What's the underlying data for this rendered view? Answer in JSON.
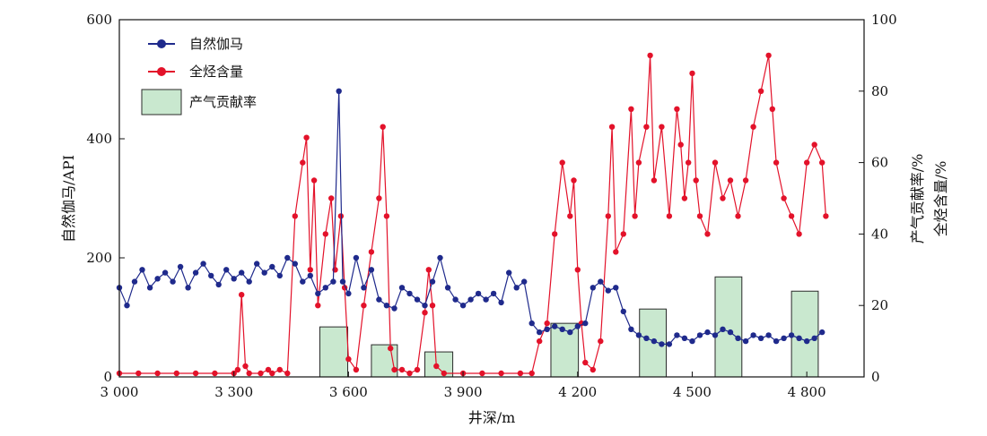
{
  "chart_data": {
    "type": "line",
    "xlabel": "井深/m",
    "ylabel_left": "自然伽马/API",
    "ylabel_right_1": "产气贡献率/%",
    "ylabel_right_2": "全烃含量/%",
    "xlim": [
      3000,
      4950
    ],
    "ylim_left": [
      0,
      600
    ],
    "ylim_right": [
      0,
      100
    ],
    "x_ticks": [
      3000,
      3300,
      3600,
      3900,
      4200,
      4500,
      4800
    ],
    "x_tick_labels": [
      "3 000",
      "3 300",
      "3 600",
      "3 900",
      "4 200",
      "4 500",
      "4 800"
    ],
    "y_left_ticks": [
      0,
      200,
      400,
      600
    ],
    "y_left_tick_labels": [
      "0",
      "200",
      "400",
      "600"
    ],
    "y_right_ticks": [
      0,
      20,
      40,
      60,
      80,
      100
    ],
    "y_right_tick_labels": [
      "0",
      "20",
      "40",
      "60",
      "80",
      "100"
    ],
    "legend_position": "top-left",
    "legend": [
      {
        "name": "自然伽马",
        "color": "#1f2a8c",
        "kind": "line-marker"
      },
      {
        "name": "全烃含量",
        "color": "#e3122a",
        "kind": "line-marker"
      },
      {
        "name": "产气贡献率",
        "color": "#c9e8cf",
        "kind": "bar"
      }
    ],
    "series": [
      {
        "name": "自然伽马",
        "axis": "left",
        "color": "#1f2a8c",
        "points": [
          [
            3000,
            150
          ],
          [
            3020,
            120
          ],
          [
            3040,
            160
          ],
          [
            3060,
            180
          ],
          [
            3080,
            150
          ],
          [
            3100,
            165
          ],
          [
            3120,
            175
          ],
          [
            3140,
            160
          ],
          [
            3160,
            185
          ],
          [
            3180,
            150
          ],
          [
            3200,
            175
          ],
          [
            3220,
            190
          ],
          [
            3240,
            170
          ],
          [
            3260,
            155
          ],
          [
            3280,
            180
          ],
          [
            3300,
            165
          ],
          [
            3320,
            175
          ],
          [
            3340,
            160
          ],
          [
            3360,
            190
          ],
          [
            3380,
            175
          ],
          [
            3400,
            185
          ],
          [
            3420,
            170
          ],
          [
            3440,
            200
          ],
          [
            3460,
            190
          ],
          [
            3480,
            160
          ],
          [
            3500,
            170
          ],
          [
            3520,
            140
          ],
          [
            3540,
            150
          ],
          [
            3560,
            160
          ],
          [
            3575,
            480
          ],
          [
            3585,
            160
          ],
          [
            3600,
            140
          ],
          [
            3620,
            200
          ],
          [
            3640,
            150
          ],
          [
            3660,
            180
          ],
          [
            3680,
            130
          ],
          [
            3700,
            120
          ],
          [
            3720,
            115
          ],
          [
            3740,
            150
          ],
          [
            3760,
            140
          ],
          [
            3780,
            130
          ],
          [
            3800,
            120
          ],
          [
            3820,
            160
          ],
          [
            3840,
            200
          ],
          [
            3860,
            150
          ],
          [
            3880,
            130
          ],
          [
            3900,
            120
          ],
          [
            3920,
            130
          ],
          [
            3940,
            140
          ],
          [
            3960,
            130
          ],
          [
            3980,
            140
          ],
          [
            4000,
            125
          ],
          [
            4020,
            175
          ],
          [
            4040,
            150
          ],
          [
            4060,
            160
          ],
          [
            4080,
            90
          ],
          [
            4100,
            75
          ],
          [
            4120,
            80
          ],
          [
            4140,
            85
          ],
          [
            4160,
            80
          ],
          [
            4180,
            75
          ],
          [
            4200,
            85
          ],
          [
            4220,
            90
          ],
          [
            4240,
            150
          ],
          [
            4260,
            160
          ],
          [
            4280,
            145
          ],
          [
            4300,
            150
          ],
          [
            4320,
            110
          ],
          [
            4340,
            80
          ],
          [
            4360,
            70
          ],
          [
            4380,
            65
          ],
          [
            4400,
            60
          ],
          [
            4420,
            55
          ],
          [
            4440,
            55
          ],
          [
            4460,
            70
          ],
          [
            4480,
            65
          ],
          [
            4500,
            60
          ],
          [
            4520,
            70
          ],
          [
            4540,
            75
          ],
          [
            4560,
            70
          ],
          [
            4580,
            80
          ],
          [
            4600,
            75
          ],
          [
            4620,
            65
          ],
          [
            4640,
            60
          ],
          [
            4660,
            70
          ],
          [
            4680,
            65
          ],
          [
            4700,
            70
          ],
          [
            4720,
            60
          ],
          [
            4740,
            65
          ],
          [
            4760,
            70
          ],
          [
            4780,
            65
          ],
          [
            4800,
            60
          ],
          [
            4820,
            65
          ],
          [
            4840,
            75
          ]
        ]
      },
      {
        "name": "全烃含量",
        "axis": "right",
        "color": "#e3122a",
        "points": [
          [
            3000,
            1
          ],
          [
            3050,
            1
          ],
          [
            3100,
            1
          ],
          [
            3150,
            1
          ],
          [
            3200,
            1
          ],
          [
            3250,
            1
          ],
          [
            3300,
            1
          ],
          [
            3310,
            2
          ],
          [
            3320,
            23
          ],
          [
            3330,
            3
          ],
          [
            3340,
            1
          ],
          [
            3370,
            1
          ],
          [
            3390,
            2
          ],
          [
            3400,
            1
          ],
          [
            3420,
            2
          ],
          [
            3440,
            1
          ],
          [
            3460,
            45
          ],
          [
            3480,
            60
          ],
          [
            3490,
            67
          ],
          [
            3500,
            30
          ],
          [
            3510,
            55
          ],
          [
            3520,
            20
          ],
          [
            3540,
            40
          ],
          [
            3555,
            50
          ],
          [
            3565,
            30
          ],
          [
            3580,
            45
          ],
          [
            3590,
            25
          ],
          [
            3600,
            5
          ],
          [
            3620,
            2
          ],
          [
            3640,
            20
          ],
          [
            3660,
            35
          ],
          [
            3680,
            50
          ],
          [
            3690,
            70
          ],
          [
            3700,
            45
          ],
          [
            3710,
            8
          ],
          [
            3720,
            2
          ],
          [
            3740,
            2
          ],
          [
            3760,
            1
          ],
          [
            3780,
            2
          ],
          [
            3800,
            18
          ],
          [
            3810,
            30
          ],
          [
            3820,
            20
          ],
          [
            3830,
            3
          ],
          [
            3850,
            1
          ],
          [
            3900,
            1
          ],
          [
            3950,
            1
          ],
          [
            4000,
            1
          ],
          [
            4050,
            1
          ],
          [
            4080,
            1
          ],
          [
            4100,
            10
          ],
          [
            4120,
            15
          ],
          [
            4140,
            40
          ],
          [
            4160,
            60
          ],
          [
            4180,
            45
          ],
          [
            4190,
            55
          ],
          [
            4200,
            30
          ],
          [
            4210,
            15
          ],
          [
            4220,
            4
          ],
          [
            4240,
            2
          ],
          [
            4260,
            10
          ],
          [
            4280,
            45
          ],
          [
            4290,
            70
          ],
          [
            4300,
            35
          ],
          [
            4320,
            40
          ],
          [
            4340,
            75
          ],
          [
            4350,
            45
          ],
          [
            4360,
            60
          ],
          [
            4380,
            70
          ],
          [
            4390,
            90
          ],
          [
            4400,
            55
          ],
          [
            4420,
            70
          ],
          [
            4440,
            45
          ],
          [
            4460,
            75
          ],
          [
            4470,
            65
          ],
          [
            4480,
            50
          ],
          [
            4490,
            60
          ],
          [
            4500,
            85
          ],
          [
            4510,
            55
          ],
          [
            4520,
            45
          ],
          [
            4540,
            40
          ],
          [
            4560,
            60
          ],
          [
            4580,
            50
          ],
          [
            4600,
            55
          ],
          [
            4620,
            45
          ],
          [
            4640,
            55
          ],
          [
            4660,
            70
          ],
          [
            4680,
            80
          ],
          [
            4700,
            90
          ],
          [
            4710,
            75
          ],
          [
            4720,
            60
          ],
          [
            4740,
            50
          ],
          [
            4760,
            45
          ],
          [
            4780,
            40
          ],
          [
            4800,
            60
          ],
          [
            4820,
            65
          ],
          [
            4840,
            60
          ],
          [
            4850,
            45
          ]
        ]
      }
    ],
    "bars": {
      "name": "产气贡献率",
      "axis": "right",
      "color": "#c9e8cf",
      "edge_color": "#2a2a2a",
      "items": [
        {
          "x0": 3525,
          "x1": 3598,
          "value": 14
        },
        {
          "x0": 3660,
          "x1": 3728,
          "value": 9
        },
        {
          "x0": 3800,
          "x1": 3873,
          "value": 7
        },
        {
          "x0": 4130,
          "x1": 4202,
          "value": 15
        },
        {
          "x0": 4362,
          "x1": 4432,
          "value": 19
        },
        {
          "x0": 4560,
          "x1": 4630,
          "value": 28
        },
        {
          "x0": 4760,
          "x1": 4830,
          "value": 24
        }
      ]
    }
  }
}
